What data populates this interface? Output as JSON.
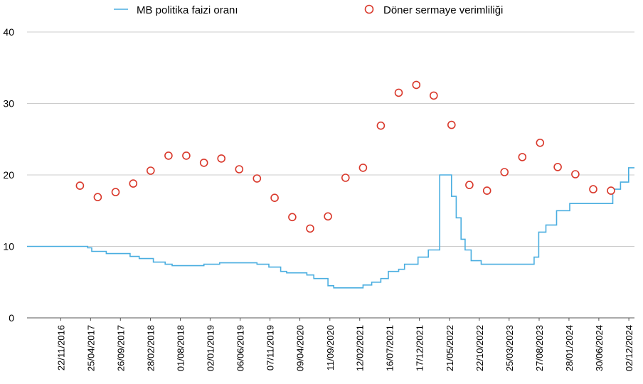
{
  "chart_data": {
    "type": "line",
    "xlabel": "",
    "ylabel": "",
    "ylim": [
      0,
      40
    ],
    "yticks": [
      0,
      10,
      20,
      30,
      40
    ],
    "grid": "horizontal",
    "legend": "top",
    "x_tick_labels": [
      "22/11/2016",
      "25/04/2017",
      "26/09/2017",
      "28/02/2018",
      "01/08/2018",
      "02/01/2019",
      "06/06/2019",
      "07/11/2019",
      "09/04/2020",
      "11/09/2020",
      "12/02/2021",
      "16/07/2021",
      "17/12/2021",
      "21/05/2022",
      "22/10/2022",
      "25/03/2023",
      "27/08/2023",
      "28/01/2024",
      "30/06/2024",
      "02/12/2024"
    ],
    "x_range": [
      "2016-06-01",
      "2024-12-31"
    ],
    "colors": {
      "line": "#4aaee0",
      "scatter": "#d9382b",
      "grid": "#cccccc"
    },
    "series": [
      {
        "name": "MB politika faizi oranı",
        "kind": "step-line",
        "points": [
          [
            "2016-06-01",
            10
          ],
          [
            "2016-12-10",
            10
          ],
          [
            "2017-04-10",
            9.8
          ],
          [
            "2017-05-01",
            9.3
          ],
          [
            "2017-07-15",
            9.0
          ],
          [
            "2017-11-15",
            8.6
          ],
          [
            "2018-01-01",
            8.3
          ],
          [
            "2018-03-15",
            7.8
          ],
          [
            "2018-05-15",
            7.5
          ],
          [
            "2018-06-20",
            7.3
          ],
          [
            "2018-12-01",
            7.5
          ],
          [
            "2019-02-20",
            7.7
          ],
          [
            "2019-09-01",
            7.5
          ],
          [
            "2019-11-01",
            7.1
          ],
          [
            "2020-01-01",
            6.5
          ],
          [
            "2020-02-01",
            6.3
          ],
          [
            "2020-05-15",
            6.0
          ],
          [
            "2020-06-20",
            5.5
          ],
          [
            "2020-09-01",
            4.5
          ],
          [
            "2020-10-01",
            4.2
          ],
          [
            "2021-01-01",
            4.2
          ],
          [
            "2021-03-01",
            4.6
          ],
          [
            "2021-04-15",
            5.0
          ],
          [
            "2021-06-01",
            5.5
          ],
          [
            "2021-07-10",
            6.5
          ],
          [
            "2021-09-01",
            6.8
          ],
          [
            "2021-10-01",
            7.5
          ],
          [
            "2021-12-10",
            8.5
          ],
          [
            "2022-02-01",
            9.5
          ],
          [
            "2022-04-01",
            20
          ],
          [
            "2022-06-01",
            17
          ],
          [
            "2022-06-25",
            14
          ],
          [
            "2022-07-20",
            11
          ],
          [
            "2022-08-10",
            9.5
          ],
          [
            "2022-09-10",
            8.0
          ],
          [
            "2022-11-01",
            7.5
          ],
          [
            "2023-08-01",
            8.5
          ],
          [
            "2023-08-25",
            12
          ],
          [
            "2023-10-01",
            13
          ],
          [
            "2023-11-25",
            15
          ],
          [
            "2024-02-01",
            16
          ],
          [
            "2024-09-10",
            18
          ],
          [
            "2024-10-01",
            18
          ],
          [
            "2024-10-20",
            19
          ],
          [
            "2024-11-01",
            19
          ],
          [
            "2024-12-01",
            21
          ],
          [
            "2024-12-31",
            21
          ]
        ]
      },
      {
        "name": "Döner sermaye verimliliği",
        "kind": "scatter",
        "points": [
          [
            "2017-03-01",
            18.5
          ],
          [
            "2017-06-01",
            16.9
          ],
          [
            "2017-09-01",
            17.6
          ],
          [
            "2017-12-01",
            18.8
          ],
          [
            "2018-03-01",
            20.6
          ],
          [
            "2018-06-01",
            22.7
          ],
          [
            "2018-09-01",
            22.7
          ],
          [
            "2018-12-01",
            21.7
          ],
          [
            "2019-03-01",
            22.3
          ],
          [
            "2019-06-01",
            20.8
          ],
          [
            "2019-09-01",
            19.5
          ],
          [
            "2019-12-01",
            16.8
          ],
          [
            "2020-03-01",
            14.1
          ],
          [
            "2020-06-01",
            12.5
          ],
          [
            "2020-09-01",
            14.2
          ],
          [
            "2020-12-01",
            19.6
          ],
          [
            "2021-03-01",
            21.0
          ],
          [
            "2021-06-01",
            26.9
          ],
          [
            "2021-09-01",
            31.5
          ],
          [
            "2021-12-01",
            32.6
          ],
          [
            "2022-03-01",
            31.1
          ],
          [
            "2022-06-01",
            27.0
          ],
          [
            "2022-09-01",
            18.6
          ],
          [
            "2022-12-01",
            17.8
          ],
          [
            "2023-03-01",
            20.4
          ],
          [
            "2023-06-01",
            22.5
          ],
          [
            "2023-09-01",
            24.5
          ],
          [
            "2023-12-01",
            21.1
          ],
          [
            "2024-03-01",
            20.1
          ],
          [
            "2024-06-01",
            18.0
          ],
          [
            "2024-09-01",
            17.8
          ]
        ]
      }
    ]
  }
}
